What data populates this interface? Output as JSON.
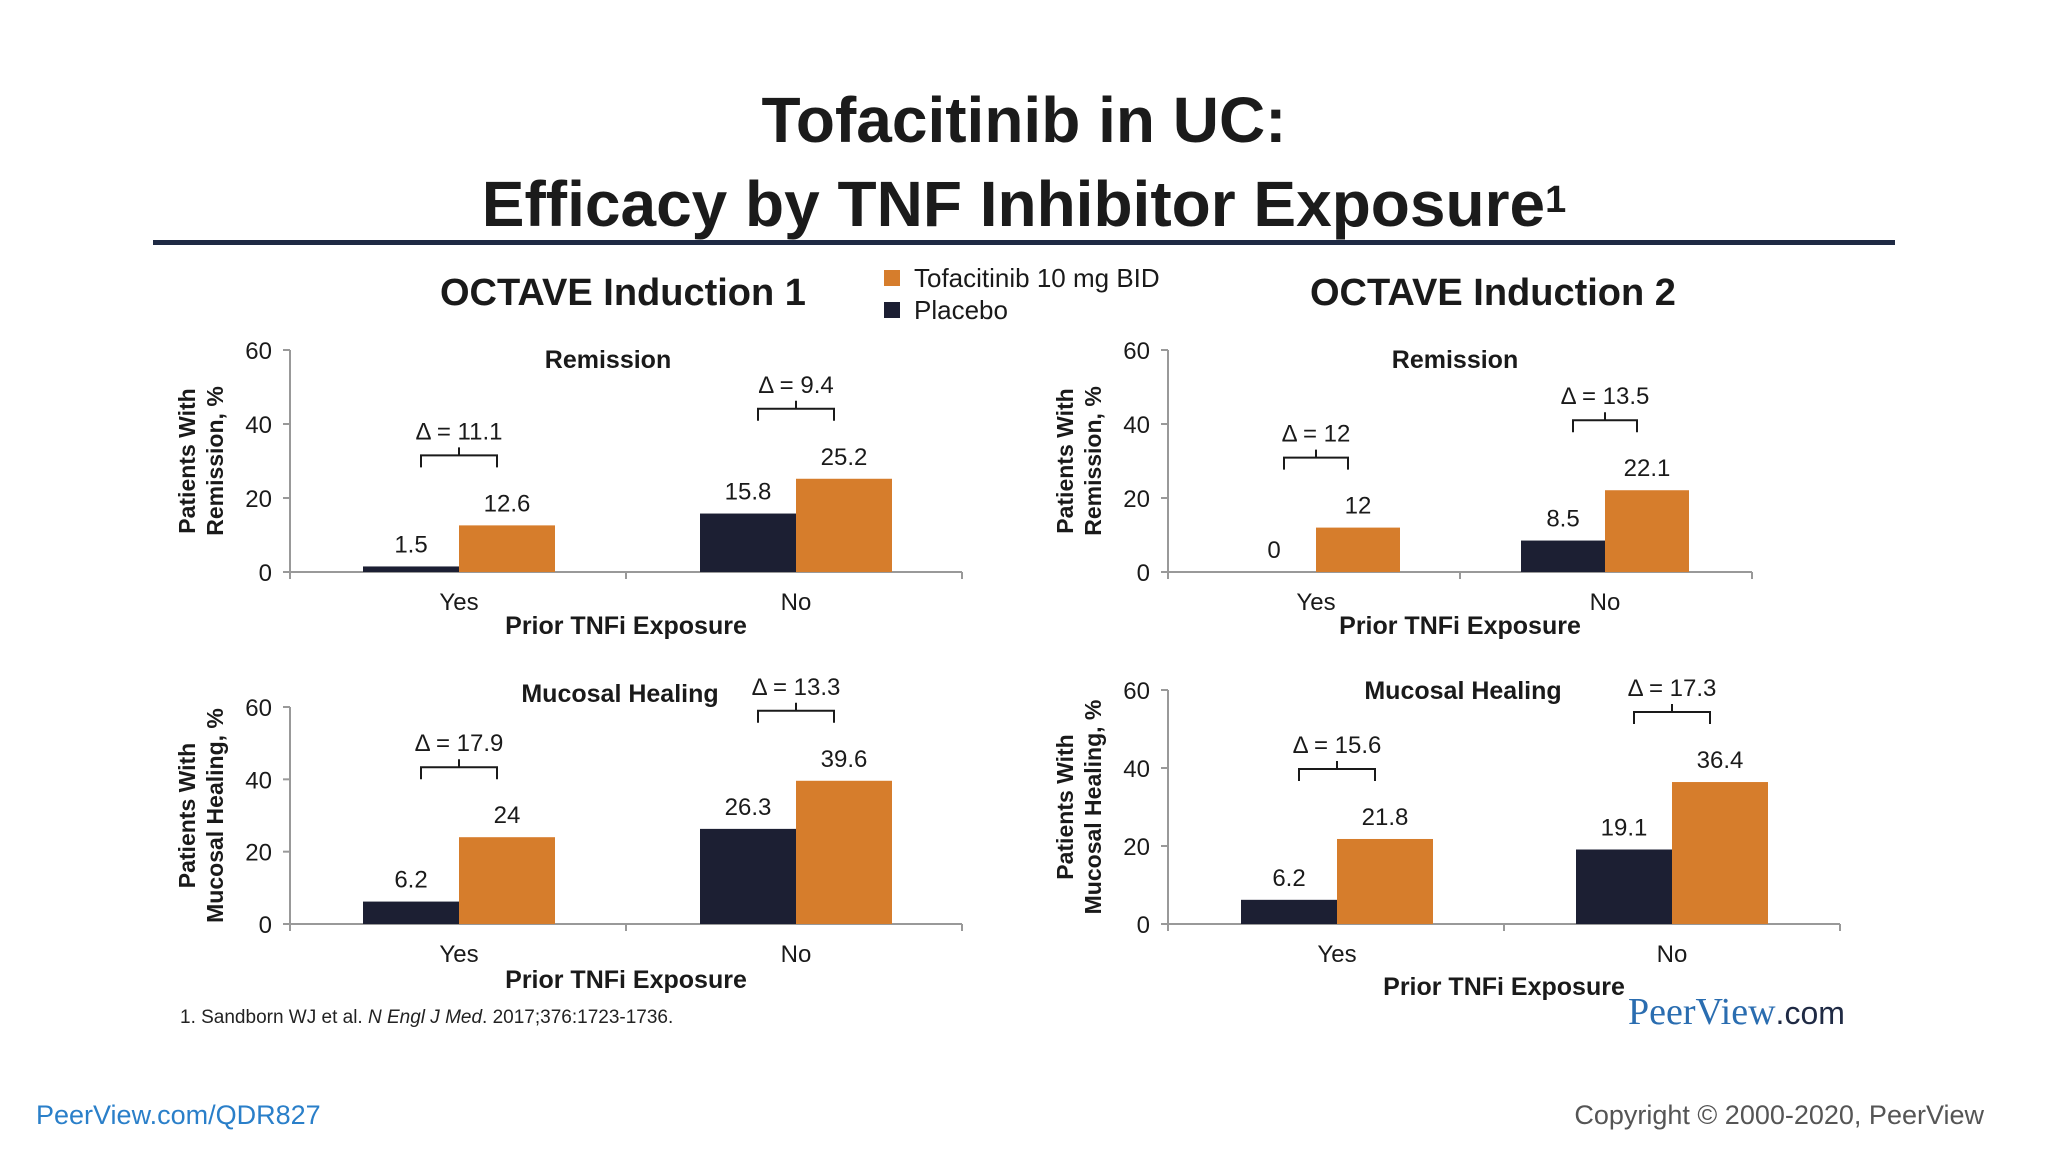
{
  "slide": {
    "title_line1": "Tofacitinib in UC:",
    "title_line2": "Efficacy by TNF Inhibitor Exposure",
    "title_superscript": "1",
    "footnote_prefix": "1. Sandborn WJ et al. ",
    "footnote_journal": "N Engl J Med",
    "footnote_suffix": ". 2017;376:1723-1736.",
    "brand_name": "PeerView",
    "brand_tld": ".com",
    "bottom_link": "PeerView.com/QDR827",
    "copyright": "Copyright © 2000-2020, PeerView"
  },
  "panels": {
    "left_heading": "OCTAVE Induction 1",
    "right_heading": "OCTAVE Induction 2"
  },
  "legend": {
    "items": [
      {
        "label": "Tofacitinib 10 mg BID",
        "color": "#d67d2c"
      },
      {
        "label": "Placebo",
        "color": "#1c1f33"
      }
    ]
  },
  "colors": {
    "tofacitinib": "#d67d2c",
    "placebo": "#1c1f33",
    "axis": "#999999",
    "text": "#1a1a1a"
  },
  "chart_data": [
    {
      "type": "bar",
      "panel": "OCTAVE Induction 1",
      "title": "Remission",
      "xlabel": "Prior TNFi Exposure",
      "ylabel": [
        "Patients With",
        "Remission, %"
      ],
      "ylim": [
        0,
        60
      ],
      "yticks": [
        0,
        20,
        40,
        60
      ],
      "categories": [
        "Yes",
        "No"
      ],
      "series": [
        {
          "name": "Placebo",
          "values": [
            1.5,
            15.8
          ]
        },
        {
          "name": "Tofacitinib 10 mg BID",
          "values": [
            12.6,
            25.2
          ]
        }
      ],
      "value_labels": [
        [
          "1.5",
          "15.8"
        ],
        [
          "12.6",
          "25.2"
        ]
      ],
      "deltas": [
        "Δ = 11.1",
        "Δ = 9.4"
      ]
    },
    {
      "type": "bar",
      "panel": "OCTAVE Induction 2",
      "title": "Remission",
      "xlabel": "Prior TNFi Exposure",
      "ylabel": [
        "Patients With",
        "Remission, %"
      ],
      "ylim": [
        0,
        60
      ],
      "yticks": [
        0,
        20,
        40,
        60
      ],
      "categories": [
        "Yes",
        "No"
      ],
      "series": [
        {
          "name": "Placebo",
          "values": [
            0,
            8.5
          ]
        },
        {
          "name": "Tofacitinib 10 mg BID",
          "values": [
            12,
            22.1
          ]
        }
      ],
      "value_labels": [
        [
          "0",
          "8.5"
        ],
        [
          "12",
          "22.1"
        ]
      ],
      "deltas": [
        "Δ = 12",
        "Δ = 13.5"
      ]
    },
    {
      "type": "bar",
      "panel": "OCTAVE Induction 1",
      "title": "Mucosal Healing",
      "xlabel": "Prior TNFi Exposure",
      "ylabel": [
        "Patients With",
        "Mucosal Healing, %"
      ],
      "ylim": [
        0,
        60
      ],
      "yticks": [
        0,
        20,
        40,
        60
      ],
      "categories": [
        "Yes",
        "No"
      ],
      "series": [
        {
          "name": "Placebo",
          "values": [
            6.2,
            26.3
          ]
        },
        {
          "name": "Tofacitinib 10 mg BID",
          "values": [
            24,
            39.6
          ]
        }
      ],
      "value_labels": [
        [
          "6.2",
          "26.3"
        ],
        [
          "24",
          "39.6"
        ]
      ],
      "deltas": [
        "Δ = 17.9",
        "Δ = 13.3"
      ]
    },
    {
      "type": "bar",
      "panel": "OCTAVE Induction 2",
      "title": "Mucosal Healing",
      "xlabel": "Prior TNFi Exposure",
      "ylabel": [
        "Patients With",
        "Mucosal Healing, %"
      ],
      "ylim": [
        0,
        60
      ],
      "yticks": [
        0,
        20,
        40,
        60
      ],
      "categories": [
        "Yes",
        "No"
      ],
      "series": [
        {
          "name": "Placebo",
          "values": [
            6.2,
            19.1
          ]
        },
        {
          "name": "Tofacitinib 10 mg BID",
          "values": [
            21.8,
            36.4
          ]
        }
      ],
      "value_labels": [
        [
          "6.2",
          "19.1"
        ],
        [
          "21.8",
          "36.4"
        ]
      ],
      "deltas": [
        "Δ = 15.6",
        "Δ = 17.3"
      ]
    }
  ]
}
